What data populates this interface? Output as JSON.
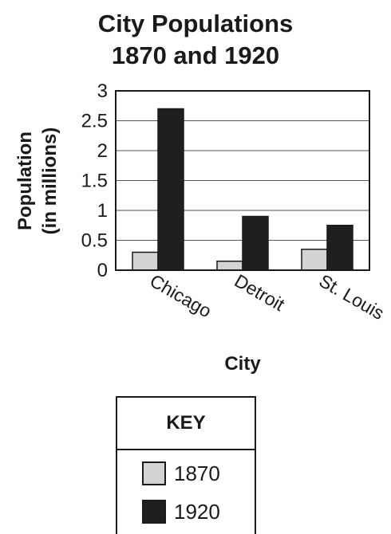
{
  "chart_data": {
    "type": "bar",
    "title": [
      "City Populations",
      "1870 and 1920"
    ],
    "xlabel": "City",
    "ylabel": [
      "Population",
      "(in millions)"
    ],
    "ylim": [
      0,
      3
    ],
    "yticks": [
      "0",
      "0.5",
      "1",
      "1.5",
      "2",
      "2.5",
      "3"
    ],
    "categories": [
      "Chicago",
      "Detroit",
      "St. Louis"
    ],
    "series": [
      {
        "name": "1870",
        "values": [
          0.3,
          0.15,
          0.35
        ],
        "color": "#d3d3d3"
      },
      {
        "name": "1920",
        "values": [
          2.7,
          0.9,
          0.75
        ],
        "color": "#1f1f1f"
      }
    ],
    "grid": true,
    "legend": {
      "title": "KEY",
      "placement": "bottom"
    }
  }
}
